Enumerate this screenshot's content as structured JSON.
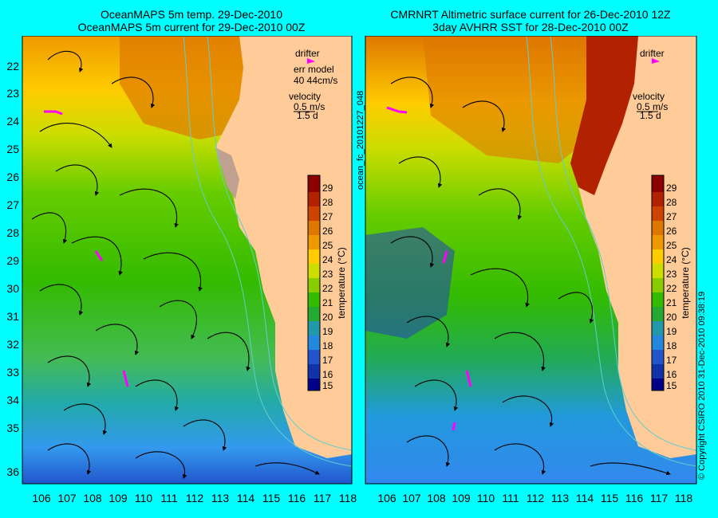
{
  "left_panel": {
    "title_line1": "OceanMAPS 5m temp. 29-Dec-2010",
    "title_line2": "OceanMAPS 5m current for 29-Dec-2010 00Z",
    "legend": {
      "drifter": "drifter",
      "err_model_line1": "err model",
      "err_model_line2": "40 44cm/s",
      "velocity": "velocity",
      "velocity_scale": "0.5 m/s",
      "velocity_time": "1.5 d"
    }
  },
  "right_panel": {
    "title_line1": "CMRNRT Altimetric surface current for 26-Dec-2010 12Z",
    "title_line2": "3day AVHRR SST for 28-Dec-2010 00Z",
    "legend": {
      "drifter": "drifter",
      "velocity": "velocity",
      "velocity_scale": "0.5 m/s",
      "velocity_time": "1.5 d"
    }
  },
  "axes": {
    "lat_labels": [
      "22",
      "23",
      "24",
      "25",
      "26",
      "27",
      "28",
      "29",
      "30",
      "31",
      "32",
      "33",
      "34",
      "35",
      "36"
    ],
    "lon_labels": [
      "106",
      "107",
      "108",
      "109",
      "110",
      "111",
      "112",
      "113",
      "114",
      "115",
      "116",
      "117",
      "118"
    ]
  },
  "colorbar": {
    "labels": [
      "29",
      "28",
      "27",
      "26",
      "25",
      "24",
      "23",
      "22",
      "21",
      "20",
      "19",
      "18",
      "17",
      "16",
      "15"
    ],
    "unit_label": "temperature (°C)",
    "colors": [
      "#8b0000",
      "#b22200",
      "#cc4400",
      "#dd7700",
      "#ee9900",
      "#ffcc00",
      "#ccdd00",
      "#88cc00",
      "#33bb00",
      "#22aa33",
      "#2299aa",
      "#2288dd",
      "#2255cc",
      "#1133aa",
      "#000088"
    ]
  },
  "side_text": {
    "ocean_id": "ocean_fc_20101227_048",
    "copyright": "© Copyright CSIRO 2010    31-Dec-2010 09:38:19"
  },
  "colors": {
    "background": "#00ffff",
    "land": "#ffcc99",
    "drifter": "#ff00ff",
    "contour": "#66cccc"
  }
}
